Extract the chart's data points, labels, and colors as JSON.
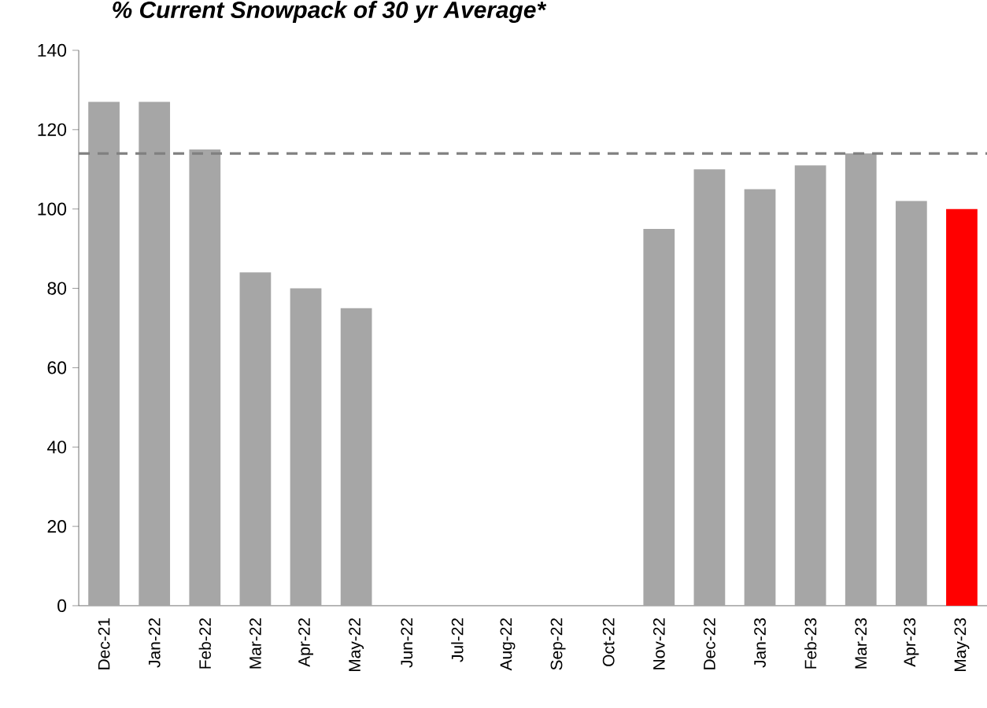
{
  "chart_data": {
    "type": "bar",
    "title": "% Current Snowpack of 30 yr Average*",
    "categories": [
      "Dec-21",
      "Jan-22",
      "Feb-22",
      "Mar-22",
      "Apr-22",
      "May-22",
      "Jun-22",
      "Jul-22",
      "Aug-22",
      "Sep-22",
      "Oct-22",
      "Nov-22",
      "Dec-22",
      "Jan-23",
      "Feb-23",
      "Mar-23",
      "Apr-23",
      "May-23"
    ],
    "values": [
      127,
      127,
      115,
      84,
      80,
      75,
      null,
      null,
      null,
      null,
      null,
      95,
      110,
      105,
      111,
      114,
      102,
      100
    ],
    "colors": [
      "#a6a6a6",
      "#a6a6a6",
      "#a6a6a6",
      "#a6a6a6",
      "#a6a6a6",
      "#a6a6a6",
      "#a6a6a6",
      "#a6a6a6",
      "#a6a6a6",
      "#a6a6a6",
      "#a6a6a6",
      "#a6a6a6",
      "#a6a6a6",
      "#a6a6a6",
      "#a6a6a6",
      "#a6a6a6",
      "#a6a6a6",
      "#ff0000"
    ],
    "ylim": [
      0,
      140
    ],
    "yticks": [
      0,
      20,
      40,
      60,
      80,
      100,
      120,
      140
    ],
    "ref_lines": [
      {
        "axis": "y",
        "value": 114,
        "color": "#808080",
        "line_style": "dashed"
      }
    ]
  }
}
